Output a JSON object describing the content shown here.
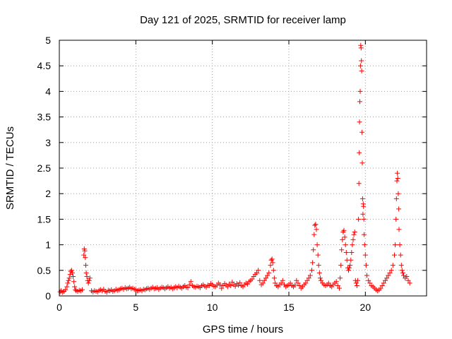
{
  "chart_data": {
    "type": "scatter",
    "title": "Day 121 of 2025, SRMTID for receiver lamp",
    "xlabel": "GPS time / hours",
    "ylabel": "SRMTID / TECUs",
    "xlim": [
      0,
      24
    ],
    "ylim": [
      0,
      5
    ],
    "x_ticks": [
      0,
      5,
      10,
      15,
      20
    ],
    "x_tick_labels": [
      "0",
      "5",
      "10",
      "15",
      "20"
    ],
    "y_ticks": [
      0,
      0.5,
      1,
      1.5,
      2,
      2.5,
      3,
      3.5,
      4,
      4.5,
      5
    ],
    "y_tick_labels": [
      "0",
      "0.5",
      "1",
      "1.5",
      "2",
      "2.5",
      "3",
      "3.5",
      "4",
      "4.5",
      "5"
    ],
    "grid": true,
    "marker": "+",
    "colors": {
      "series": "#ff0000",
      "grid": "#a0a0a0",
      "axis": "#000000"
    },
    "series": [
      {
        "name": "SRMTID",
        "points": [
          [
            0.05,
            0.08
          ],
          [
            0.12,
            0.1
          ],
          [
            0.2,
            0.07
          ],
          [
            0.3,
            0.09
          ],
          [
            0.4,
            0.12
          ],
          [
            0.5,
            0.18
          ],
          [
            0.55,
            0.25
          ],
          [
            0.6,
            0.3
          ],
          [
            0.65,
            0.35
          ],
          [
            0.7,
            0.42
          ],
          [
            0.75,
            0.48
          ],
          [
            0.8,
            0.5
          ],
          [
            0.85,
            0.45
          ],
          [
            0.9,
            0.38
          ],
          [
            0.95,
            0.28
          ],
          [
            1.0,
            0.18
          ],
          [
            1.05,
            0.12
          ],
          [
            1.1,
            0.1
          ],
          [
            1.2,
            0.09
          ],
          [
            1.3,
            0.11
          ],
          [
            1.4,
            0.1
          ],
          [
            1.5,
            0.12
          ],
          [
            1.6,
            0.8
          ],
          [
            1.63,
            0.92
          ],
          [
            1.66,
            0.88
          ],
          [
            1.7,
            0.75
          ],
          [
            1.73,
            0.6
          ],
          [
            1.76,
            0.45
          ],
          [
            1.8,
            0.38
          ],
          [
            1.85,
            0.3
          ],
          [
            1.9,
            0.25
          ],
          [
            1.95,
            0.3
          ],
          [
            2.0,
            0.35
          ],
          [
            2.1,
            0.1
          ],
          [
            2.2,
            0.08
          ],
          [
            2.3,
            0.1
          ],
          [
            2.4,
            0.09
          ],
          [
            2.5,
            0.08
          ],
          [
            2.6,
            0.11
          ],
          [
            2.7,
            0.12
          ],
          [
            2.8,
            0.1
          ],
          [
            2.9,
            0.13
          ],
          [
            3.0,
            0.09
          ],
          [
            3.1,
            0.07
          ],
          [
            3.2,
            0.11
          ],
          [
            3.3,
            0.1
          ],
          [
            3.4,
            0.12
          ],
          [
            3.5,
            0.09
          ],
          [
            3.6,
            0.1
          ],
          [
            3.7,
            0.13
          ],
          [
            3.8,
            0.11
          ],
          [
            3.9,
            0.12
          ],
          [
            4.0,
            0.14
          ],
          [
            4.1,
            0.15
          ],
          [
            4.2,
            0.13
          ],
          [
            4.3,
            0.16
          ],
          [
            4.4,
            0.14
          ],
          [
            4.5,
            0.15
          ],
          [
            4.6,
            0.17
          ],
          [
            4.7,
            0.14
          ],
          [
            4.8,
            0.15
          ],
          [
            4.9,
            0.13
          ],
          [
            5.0,
            0.12
          ],
          [
            5.1,
            0.1
          ],
          [
            5.2,
            0.11
          ],
          [
            5.3,
            0.12
          ],
          [
            5.4,
            0.1
          ],
          [
            5.5,
            0.13
          ],
          [
            5.6,
            0.12
          ],
          [
            5.7,
            0.14
          ],
          [
            5.8,
            0.15
          ],
          [
            5.9,
            0.13
          ],
          [
            6.0,
            0.15
          ],
          [
            6.1,
            0.17
          ],
          [
            6.2,
            0.14
          ],
          [
            6.3,
            0.15
          ],
          [
            6.4,
            0.16
          ],
          [
            6.5,
            0.13
          ],
          [
            6.6,
            0.15
          ],
          [
            6.7,
            0.17
          ],
          [
            6.8,
            0.16
          ],
          [
            6.9,
            0.14
          ],
          [
            7.0,
            0.16
          ],
          [
            7.1,
            0.18
          ],
          [
            7.2,
            0.15
          ],
          [
            7.3,
            0.17
          ],
          [
            7.4,
            0.14
          ],
          [
            7.5,
            0.16
          ],
          [
            7.6,
            0.18
          ],
          [
            7.7,
            0.16
          ],
          [
            7.8,
            0.19
          ],
          [
            7.9,
            0.17
          ],
          [
            8.0,
            0.15
          ],
          [
            8.1,
            0.18
          ],
          [
            8.2,
            0.2
          ],
          [
            8.3,
            0.17
          ],
          [
            8.4,
            0.16
          ],
          [
            8.5,
            0.22
          ],
          [
            8.6,
            0.28
          ],
          [
            8.7,
            0.2
          ],
          [
            8.8,
            0.18
          ],
          [
            8.9,
            0.17
          ],
          [
            9.0,
            0.19
          ],
          [
            9.1,
            0.18
          ],
          [
            9.2,
            0.16
          ],
          [
            9.3,
            0.2
          ],
          [
            9.4,
            0.22
          ],
          [
            9.5,
            0.19
          ],
          [
            9.6,
            0.17
          ],
          [
            9.7,
            0.21
          ],
          [
            9.8,
            0.2
          ],
          [
            9.9,
            0.24
          ],
          [
            10.0,
            0.22
          ],
          [
            10.1,
            0.19
          ],
          [
            10.2,
            0.18
          ],
          [
            10.3,
            0.21
          ],
          [
            10.4,
            0.25
          ],
          [
            10.5,
            0.22
          ],
          [
            10.6,
            0.15
          ],
          [
            10.7,
            0.2
          ],
          [
            10.8,
            0.24
          ],
          [
            10.9,
            0.21
          ],
          [
            11.0,
            0.18
          ],
          [
            11.1,
            0.23
          ],
          [
            11.2,
            0.2
          ],
          [
            11.3,
            0.27
          ],
          [
            11.4,
            0.22
          ],
          [
            11.5,
            0.19
          ],
          [
            11.6,
            0.24
          ],
          [
            11.7,
            0.21
          ],
          [
            11.8,
            0.26
          ],
          [
            11.9,
            0.2
          ],
          [
            12.0,
            0.18
          ],
          [
            12.1,
            0.22
          ],
          [
            12.2,
            0.25
          ],
          [
            12.3,
            0.23
          ],
          [
            12.4,
            0.28
          ],
          [
            12.5,
            0.3
          ],
          [
            12.6,
            0.33
          ],
          [
            12.7,
            0.38
          ],
          [
            12.8,
            0.42
          ],
          [
            12.9,
            0.45
          ],
          [
            13.0,
            0.5
          ],
          [
            13.1,
            0.3
          ],
          [
            13.2,
            0.22
          ],
          [
            13.3,
            0.25
          ],
          [
            13.4,
            0.3
          ],
          [
            13.5,
            0.35
          ],
          [
            13.6,
            0.4
          ],
          [
            13.7,
            0.45
          ],
          [
            13.8,
            0.6
          ],
          [
            13.85,
            0.7
          ],
          [
            13.9,
            0.72
          ],
          [
            13.95,
            0.65
          ],
          [
            14.0,
            0.5
          ],
          [
            14.05,
            0.35
          ],
          [
            14.1,
            0.25
          ],
          [
            14.2,
            0.2
          ],
          [
            14.3,
            0.18
          ],
          [
            14.4,
            0.22
          ],
          [
            14.5,
            0.25
          ],
          [
            14.6,
            0.3
          ],
          [
            14.7,
            0.22
          ],
          [
            14.8,
            0.18
          ],
          [
            14.9,
            0.2
          ],
          [
            15.0,
            0.22
          ],
          [
            15.1,
            0.25
          ],
          [
            15.2,
            0.2
          ],
          [
            15.3,
            0.18
          ],
          [
            15.4,
            0.21
          ],
          [
            15.5,
            0.3
          ],
          [
            15.6,
            0.25
          ],
          [
            15.7,
            0.2
          ],
          [
            15.8,
            0.15
          ],
          [
            15.9,
            0.18
          ],
          [
            16.0,
            0.22
          ],
          [
            16.1,
            0.25
          ],
          [
            16.2,
            0.3
          ],
          [
            16.3,
            0.35
          ],
          [
            16.4,
            0.4
          ],
          [
            16.5,
            0.5
          ],
          [
            16.55,
            0.65
          ],
          [
            16.6,
            0.9
          ],
          [
            16.65,
            1.2
          ],
          [
            16.7,
            1.38
          ],
          [
            16.75,
            1.4
          ],
          [
            16.8,
            1.3
          ],
          [
            16.85,
            1.0
          ],
          [
            16.9,
            0.8
          ],
          [
            16.95,
            0.6
          ],
          [
            17.0,
            0.45
          ],
          [
            17.05,
            0.35
          ],
          [
            17.1,
            0.3
          ],
          [
            17.2,
            0.25
          ],
          [
            17.3,
            0.22
          ],
          [
            17.4,
            0.2
          ],
          [
            17.5,
            0.22
          ],
          [
            17.6,
            0.25
          ],
          [
            17.7,
            0.2
          ],
          [
            17.8,
            0.18
          ],
          [
            17.9,
            0.22
          ],
          [
            18.0,
            0.25
          ],
          [
            18.1,
            0.28
          ],
          [
            18.2,
            0.2
          ],
          [
            18.3,
            0.15
          ],
          [
            18.35,
            0.35
          ],
          [
            18.4,
            0.6
          ],
          [
            18.45,
            0.9
          ],
          [
            18.5,
            1.1
          ],
          [
            18.55,
            1.25
          ],
          [
            18.6,
            1.28
          ],
          [
            18.65,
            1.15
          ],
          [
            18.7,
            1.0
          ],
          [
            18.75,
            0.85
          ],
          [
            18.8,
            0.7
          ],
          [
            18.85,
            0.55
          ],
          [
            18.9,
            0.5
          ],
          [
            18.95,
            0.55
          ],
          [
            19.0,
            0.6
          ],
          [
            19.05,
            0.7
          ],
          [
            19.1,
            0.85
          ],
          [
            19.15,
            1.0
          ],
          [
            19.2,
            1.1
          ],
          [
            19.25,
            1.2
          ],
          [
            19.3,
            1.25
          ],
          [
            19.35,
            0.3
          ],
          [
            19.4,
            0.25
          ],
          [
            19.45,
            0.2
          ],
          [
            19.5,
            0.3
          ],
          [
            19.55,
            1.5
          ],
          [
            19.58,
            2.2
          ],
          [
            19.6,
            2.8
          ],
          [
            19.62,
            3.4
          ],
          [
            19.64,
            3.8
          ],
          [
            19.66,
            4.0
          ],
          [
            19.68,
            4.5
          ],
          [
            19.7,
            4.9
          ],
          [
            19.72,
            4.85
          ],
          [
            19.74,
            4.6
          ],
          [
            19.76,
            4.4
          ],
          [
            19.78,
            3.2
          ],
          [
            19.8,
            2.6
          ],
          [
            19.82,
            1.9
          ],
          [
            19.84,
            1.6
          ],
          [
            19.86,
            1.8
          ],
          [
            19.88,
            1.75
          ],
          [
            19.9,
            1.5
          ],
          [
            19.92,
            1.2
          ],
          [
            19.95,
            1.0
          ],
          [
            20.0,
            0.8
          ],
          [
            20.05,
            0.6
          ],
          [
            20.1,
            0.4
          ],
          [
            20.2,
            0.3
          ],
          [
            20.3,
            0.25
          ],
          [
            20.4,
            0.2
          ],
          [
            20.5,
            0.18
          ],
          [
            20.6,
            0.15
          ],
          [
            20.7,
            0.12
          ],
          [
            20.8,
            0.1
          ],
          [
            20.9,
            0.12
          ],
          [
            21.0,
            0.15
          ],
          [
            21.1,
            0.2
          ],
          [
            21.2,
            0.25
          ],
          [
            21.3,
            0.3
          ],
          [
            21.4,
            0.35
          ],
          [
            21.5,
            0.4
          ],
          [
            21.6,
            0.45
          ],
          [
            21.7,
            0.5
          ],
          [
            21.8,
            0.6
          ],
          [
            21.9,
            0.8
          ],
          [
            21.95,
            1.0
          ],
          [
            22.0,
            1.5
          ],
          [
            22.03,
            1.9
          ],
          [
            22.06,
            2.25
          ],
          [
            22.09,
            2.4
          ],
          [
            22.12,
            2.3
          ],
          [
            22.15,
            2.0
          ],
          [
            22.18,
            1.7
          ],
          [
            22.2,
            1.3
          ],
          [
            22.25,
            1.0
          ],
          [
            22.3,
            0.8
          ],
          [
            22.35,
            0.6
          ],
          [
            22.4,
            0.5
          ],
          [
            22.45,
            0.45
          ],
          [
            22.5,
            0.4
          ],
          [
            22.6,
            0.35
          ],
          [
            22.7,
            0.38
          ],
          [
            22.8,
            0.3
          ],
          [
            22.9,
            0.25
          ]
        ]
      }
    ]
  }
}
